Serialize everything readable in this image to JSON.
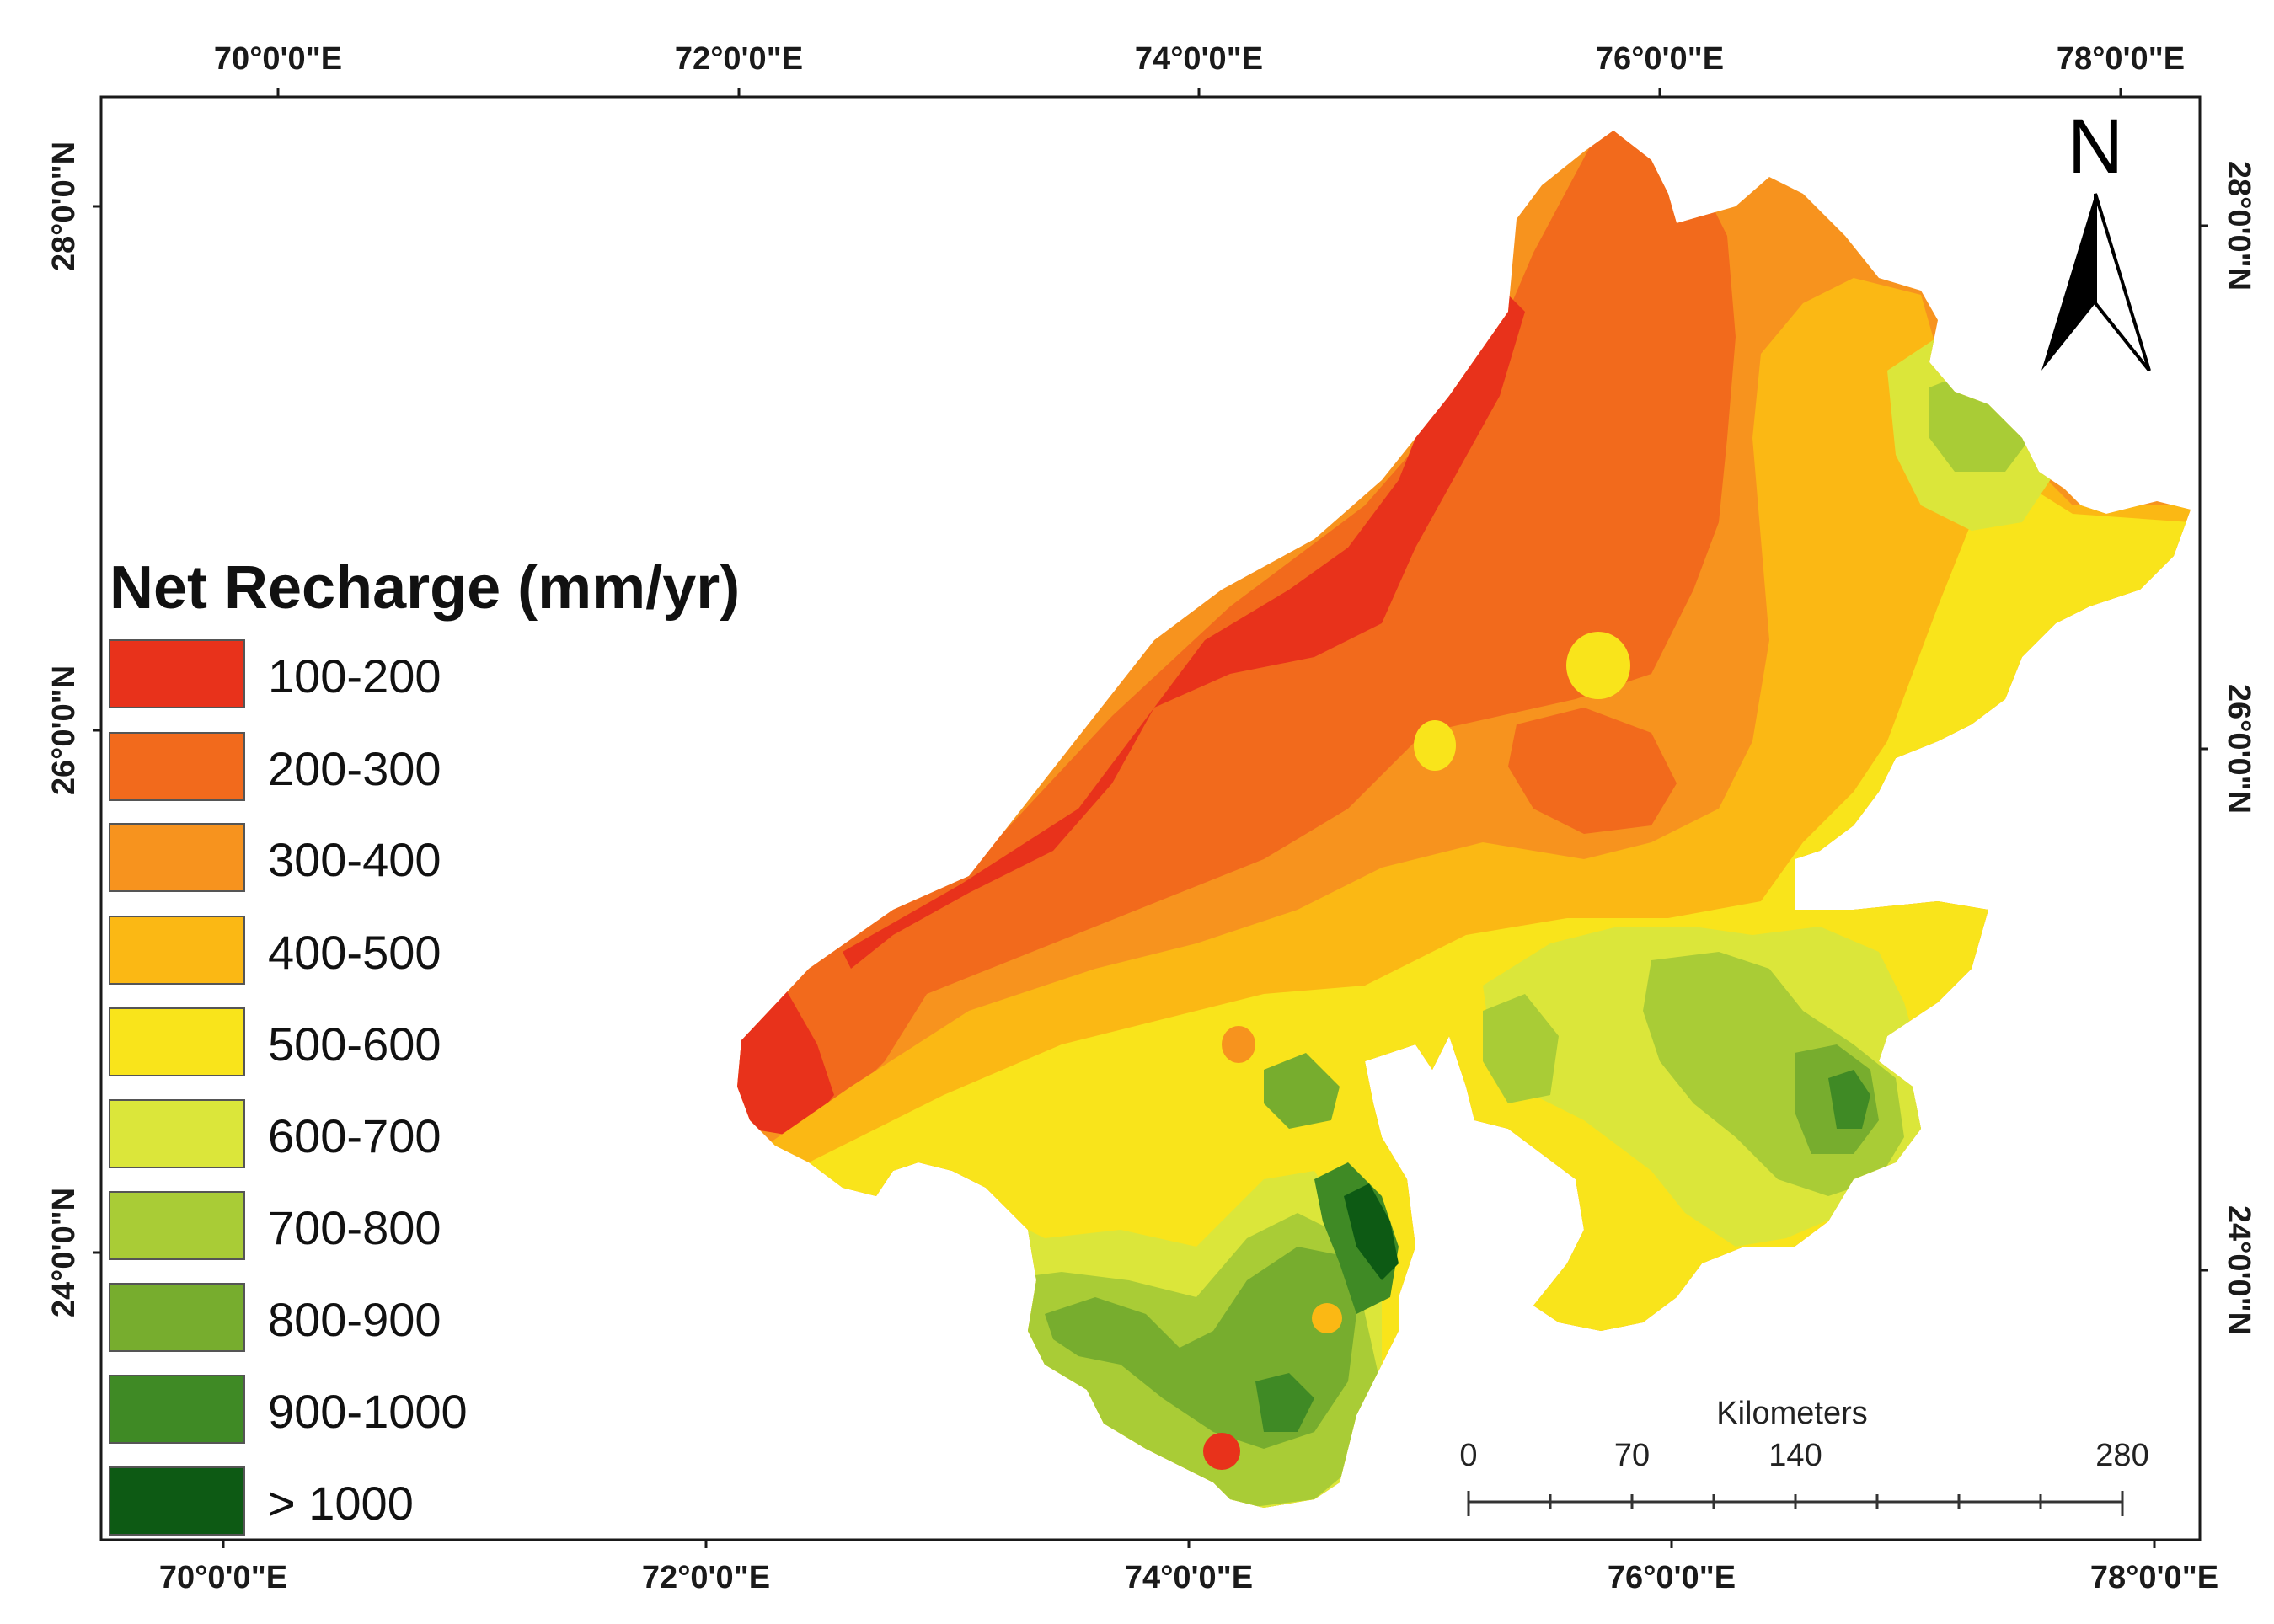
{
  "legend": {
    "title": "Net Recharge (mm/yr)",
    "classes": [
      {
        "label": "100-200",
        "color": "#e8321b"
      },
      {
        "label": "200-300",
        "color": "#f26a1c"
      },
      {
        "label": "300-400",
        "color": "#f7931e"
      },
      {
        "label": "400-500",
        "color": "#fbb814"
      },
      {
        "label": "500-600",
        "color": "#f9e41b"
      },
      {
        "label": "600-700",
        "color": "#dbe63a"
      },
      {
        "label": "700-800",
        "color": "#a9cc36"
      },
      {
        "label": "800-900",
        "color": "#77ad2e"
      },
      {
        "label": "900-1000",
        "color": "#3f8a25"
      },
      {
        "label": "> 1000",
        "color": "#0d5a14"
      }
    ]
  },
  "axes": {
    "top_labels": [
      "70°0'0\"E",
      "72°0'0\"E",
      "74°0'0\"E",
      "76°0'0\"E",
      "78°0'0\"E"
    ],
    "bottom_labels": [
      "70°0'0\"E",
      "72°0'0\"E",
      "74°0'0\"E",
      "76°0'0\"E",
      "78°0'0\"E"
    ],
    "left_labels": [
      "28°0'0\"N",
      "26°0'0\"N",
      "24°0'0\"N"
    ],
    "right_labels": [
      "28°0'0\"N",
      "26°0'0\"N",
      "24°0'0\"N"
    ]
  },
  "north_arrow": {
    "label": "N",
    "icon": "north-arrow-icon"
  },
  "scale_bar": {
    "title": "Kilometers",
    "ticks": [
      "0",
      "70",
      "140",
      "280"
    ]
  }
}
